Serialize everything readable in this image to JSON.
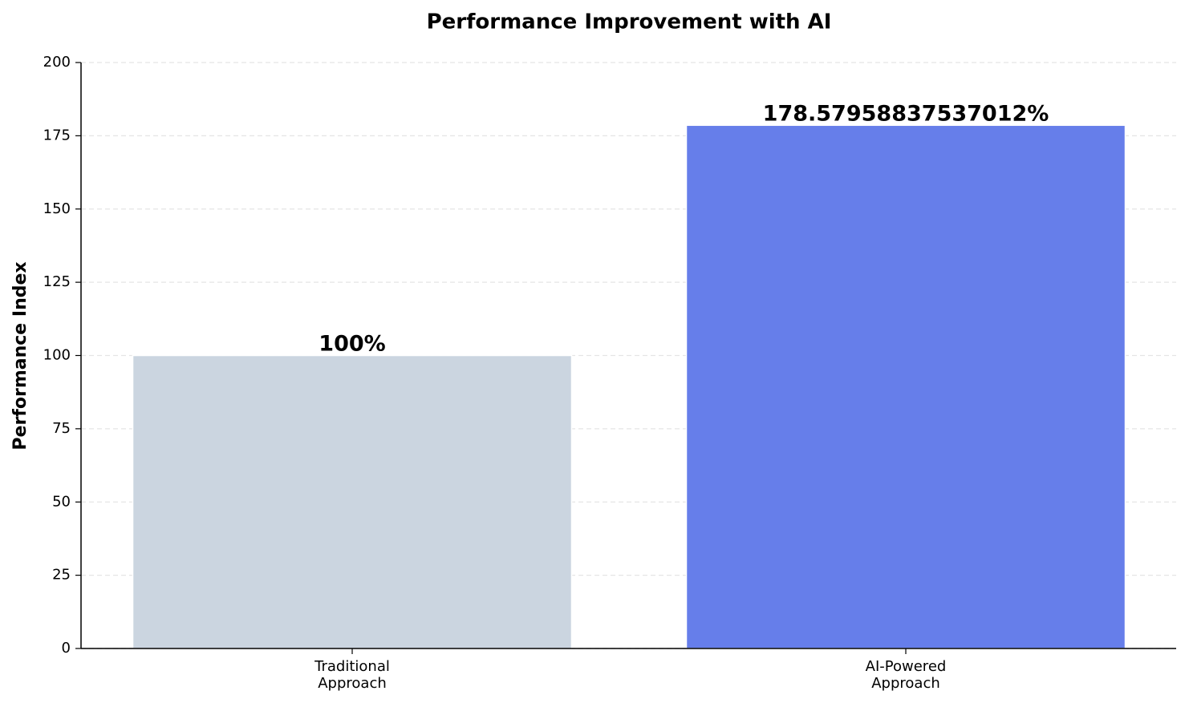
{
  "chart_data": {
    "type": "bar",
    "title": "Performance Improvement with AI",
    "ylabel": "Performance Index",
    "categories": [
      "Traditional\nApproach",
      "AI-Powered\nApproach"
    ],
    "values": [
      100,
      178.57958837537012
    ],
    "value_labels": [
      "100%",
      "178.57958837537012%"
    ],
    "colors": [
      "#cbd5e0",
      "#667eea"
    ],
    "ylim": [
      0,
      200
    ],
    "yticks": [
      0,
      25,
      50,
      75,
      100,
      125,
      150,
      175,
      200
    ],
    "grid": true
  }
}
